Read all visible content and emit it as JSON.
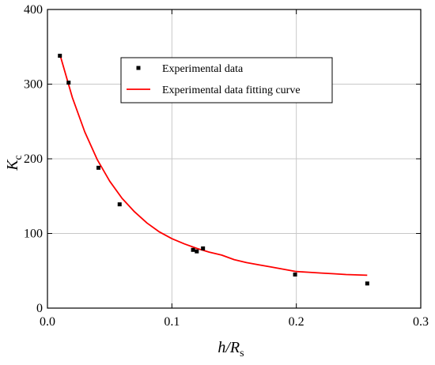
{
  "chart_data": {
    "type": "scatter",
    "title": "",
    "xlabel": {
      "main": "h/R",
      "sub": "s"
    },
    "ylabel": {
      "main": "K",
      "sub": "c"
    },
    "xlim": [
      0.0,
      0.3
    ],
    "ylim": [
      0,
      400
    ],
    "x_ticks": [
      "0.0",
      "0.1",
      "0.2",
      "0.3"
    ],
    "y_ticks": [
      "0",
      "100",
      "200",
      "300",
      "400"
    ],
    "grid": true,
    "legend_position": "top-center",
    "series": [
      {
        "name": "Experimental data",
        "kind": "scatter",
        "color": "#000000",
        "marker": "square",
        "x": [
          0.01,
          0.017,
          0.041,
          0.058,
          0.117,
          0.12,
          0.125,
          0.199,
          0.257
        ],
        "y": [
          338,
          302,
          188,
          139,
          78,
          76,
          80,
          45,
          33
        ]
      },
      {
        "name": "Experimental data fitting curve",
        "kind": "line",
        "color": "#ff0000",
        "x": [
          0.01,
          0.02,
          0.03,
          0.04,
          0.05,
          0.06,
          0.07,
          0.08,
          0.09,
          0.1,
          0.11,
          0.12,
          0.13,
          0.14,
          0.15,
          0.16,
          0.17,
          0.18,
          0.19,
          0.2,
          0.21,
          0.22,
          0.23,
          0.24,
          0.257
        ],
        "y": [
          340,
          282,
          236,
          199,
          170,
          147,
          129,
          114,
          102,
          93,
          86,
          80,
          75,
          71,
          65,
          61,
          58,
          55,
          52,
          49,
          48,
          47,
          46,
          45,
          44
        ]
      }
    ]
  }
}
